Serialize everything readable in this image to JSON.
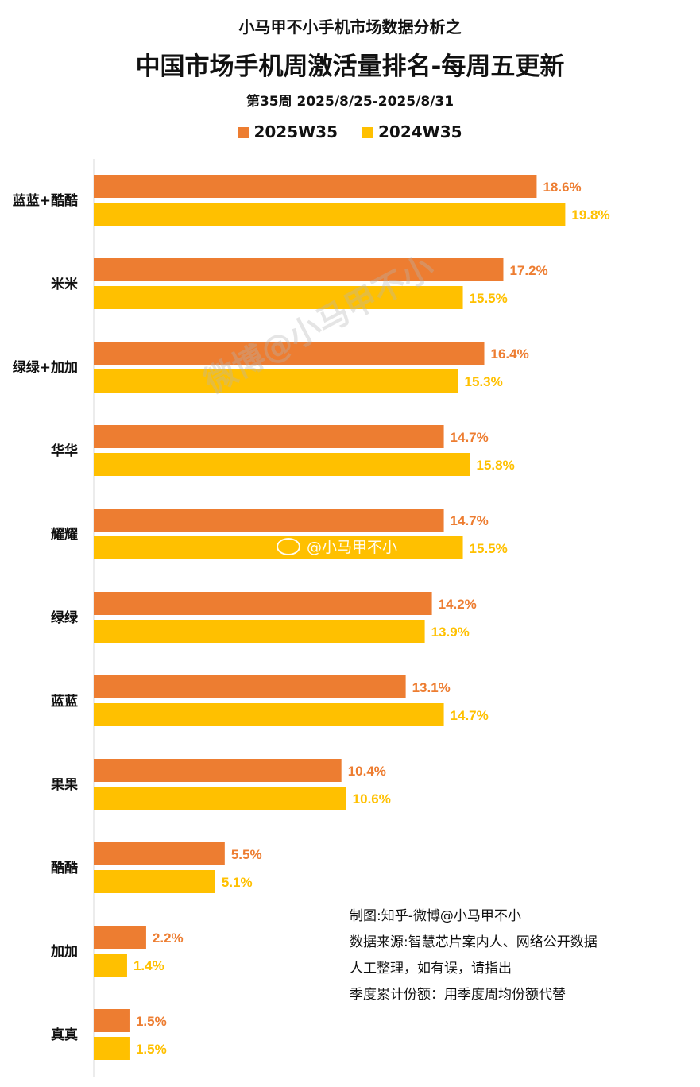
{
  "header": {
    "title_small": "小马甲不小手机市场数据分析之",
    "title_main": "中国市场手机周激活量排名-每周五更新",
    "subtitle": "第35周 2025/8/25-2025/8/31"
  },
  "colors": {
    "series_2025": "#ED7D31",
    "series_2024": "#FFC000"
  },
  "chart_data": {
    "type": "bar",
    "orientation": "horizontal",
    "categories": [
      "蓝蓝+酷酷",
      "米米",
      "绿绿+加加",
      "华华",
      "耀耀",
      "绿绿",
      "蓝蓝",
      "果果",
      "酷酷",
      "加加",
      "真真"
    ],
    "series": [
      {
        "name": "2025W35",
        "values": [
          18.6,
          17.2,
          16.4,
          14.7,
          14.7,
          14.2,
          13.1,
          10.4,
          5.5,
          2.2,
          1.5
        ]
      },
      {
        "name": "2024W35",
        "values": [
          19.8,
          15.5,
          15.3,
          15.8,
          15.5,
          13.9,
          14.7,
          10.6,
          5.1,
          1.4,
          1.5
        ]
      }
    ],
    "value_suffix": "%",
    "legend_position": "top",
    "grid": false
  },
  "notes": [
    "制图:知乎-微博@小马甲不小",
    "数据来源:智慧芯片案内人、网络公开数据",
    "人工整理，如有误，请指出",
    "季度累计份额：用季度周均份额代替"
  ],
  "watermarks": {
    "diagonal": "微博@小马甲不小",
    "inline": "@小马甲不小"
  }
}
